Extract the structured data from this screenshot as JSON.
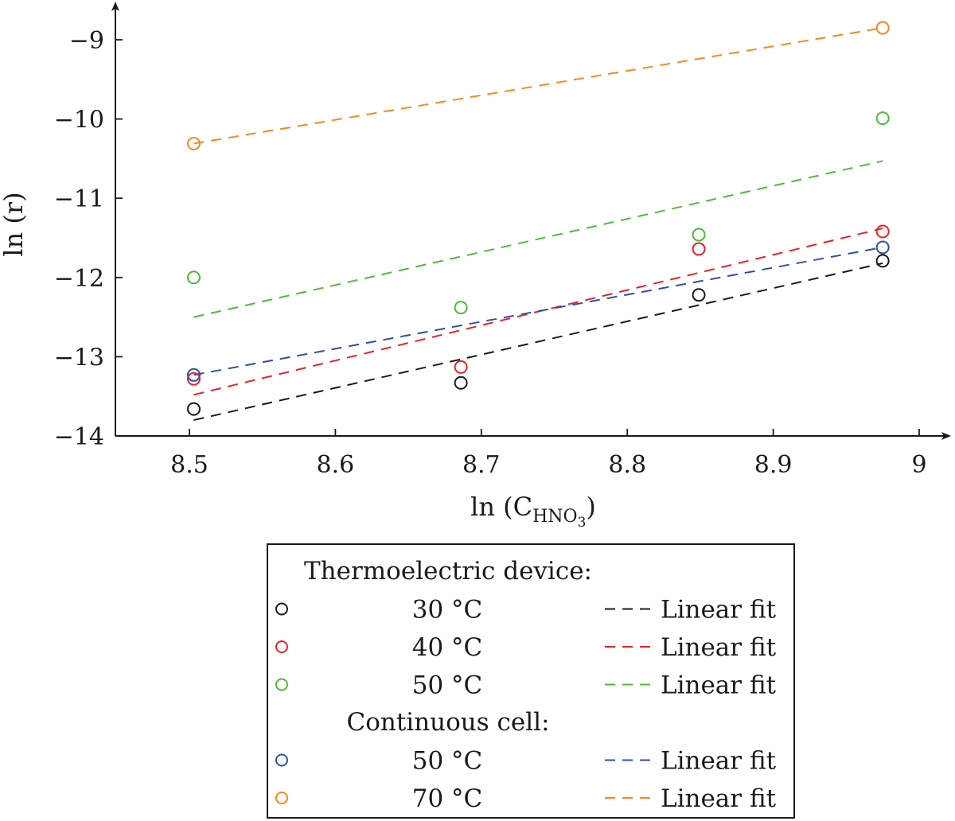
{
  "chart_data": {
    "type": "scatter",
    "xlabel": "ln (C",
    "xlabel_sub": "HNO",
    "xlabel_subsub": "3",
    "xlabel_close": ")",
    "ylabel": "ln (r)",
    "xlim": [
      8.45,
      9.0
    ],
    "ylim": [
      -14,
      -8.5
    ],
    "xticks": [
      8.5,
      8.6,
      8.7,
      8.8,
      8.9,
      9.0
    ],
    "xtick_labels": [
      "8.5",
      "8.6",
      "8.7",
      "8.8",
      "8.9",
      "9"
    ],
    "yticks": [
      -14,
      -13,
      -12,
      -11,
      -10,
      -9
    ],
    "ytick_labels": [
      "−14",
      "−13",
      "−12",
      "−11",
      "−10",
      "−9"
    ],
    "grid": false,
    "legend_placement": "below",
    "legend_groups": [
      {
        "title": "Thermoelectric device:",
        "series": [
          0,
          1,
          2
        ]
      },
      {
        "title": "Continuous cell:",
        "series": [
          3,
          4
        ]
      }
    ],
    "series": [
      {
        "name": "30 °C",
        "fit_name": "Linear fit",
        "color": "#1a1a1a",
        "x": [
          8.503,
          8.686,
          8.849,
          8.975
        ],
        "y": [
          -13.66,
          -13.33,
          -12.22,
          -11.79
        ],
        "fit": [
          [
            8.503,
            -13.8
          ],
          [
            8.975,
            -11.82
          ]
        ]
      },
      {
        "name": "40 °C",
        "fit_name": "Linear fit",
        "color": "#e8232a",
        "x": [
          8.503,
          8.686,
          8.849,
          8.975
        ],
        "y": [
          -13.28,
          -13.13,
          -11.64,
          -11.42
        ],
        "fit": [
          [
            8.503,
            -13.48
          ],
          [
            8.975,
            -11.38
          ]
        ]
      },
      {
        "name": "50 °C",
        "fit_name": "Linear fit",
        "color": "#4fba3c",
        "x": [
          8.503,
          8.686,
          8.849,
          8.975
        ],
        "y": [
          -12.0,
          -12.38,
          -11.46,
          -9.99
        ],
        "fit": [
          [
            8.503,
            -12.5
          ],
          [
            8.975,
            -10.53
          ]
        ]
      },
      {
        "name": "50 °C",
        "fit_name": "Linear fit",
        "color": "#2f4fa8",
        "x": [
          8.503,
          8.975
        ],
        "y": [
          -13.23,
          -11.62
        ],
        "fit": [
          [
            8.503,
            -13.23
          ],
          [
            8.975,
            -11.62
          ]
        ]
      },
      {
        "name": "70 °C",
        "fit_name": "Linear fit",
        "color": "#f58a1f",
        "x": [
          8.503,
          8.975
        ],
        "y": [
          -10.31,
          -8.85
        ],
        "fit": [
          [
            8.503,
            -10.31
          ],
          [
            8.975,
            -8.85
          ]
        ]
      }
    ]
  }
}
